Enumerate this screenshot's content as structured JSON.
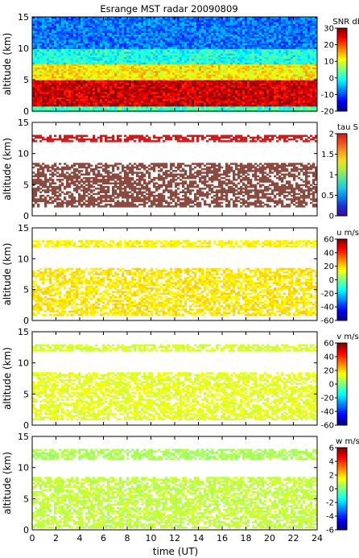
{
  "title": "Esrange MST radar 20090809",
  "xlabel": "time (UT)",
  "x_ticks": [
    "0",
    "2",
    "4",
    "6",
    "8",
    "10",
    "12",
    "14",
    "16",
    "18",
    "20",
    "22",
    "24"
  ],
  "y_ticks": [
    "0",
    "5",
    "10",
    "15"
  ],
  "colors": {
    "jet": [
      "#00007f",
      "#0000ff",
      "#007fff",
      "#00ffff",
      "#7fff7f",
      "#ffff00",
      "#ff7f00",
      "#ff0000",
      "#7f0000"
    ],
    "tau": [
      "#3b0aa0",
      "#1a2fd6",
      "#0f7ee8",
      "#19c8e6",
      "#55e0a0",
      "#a8ec4a",
      "#f0e020",
      "#f7a020",
      "#f05020",
      "#c81e1e"
    ],
    "brown": "#8b4a40"
  },
  "chart_data": [
    {
      "type": "heatmap",
      "id": "snr",
      "ylabel": "altitude (km)",
      "xlim": [
        0,
        24
      ],
      "ylim": [
        0,
        15
      ],
      "colorbar": {
        "label": "SNR dB",
        "range": [
          -20,
          30
        ],
        "ticks": [
          "30",
          "20",
          "10",
          "0",
          "-10",
          "-20"
        ]
      },
      "layers": [
        {
          "alt": [
            0,
            1.0
          ],
          "value": 2
        },
        {
          "alt": [
            1.0,
            5.0
          ],
          "value": 26
        },
        {
          "alt": [
            5.0,
            7.5
          ],
          "value": 12
        },
        {
          "alt": [
            7.5,
            10
          ],
          "value": 0
        },
        {
          "alt": [
            10,
            15
          ],
          "value": -8
        }
      ]
    },
    {
      "type": "heatmap",
      "id": "tau",
      "ylabel": "altitude (km)",
      "xlim": [
        0,
        24
      ],
      "ylim": [
        0,
        15
      ],
      "colorbar": {
        "label": "tau S",
        "range": [
          0,
          2
        ],
        "ticks": [
          "2",
          "1.5",
          "1",
          "0.5",
          "0"
        ]
      },
      "layers": [
        {
          "alt": [
            1.5,
            8.5
          ],
          "value": 2
        },
        {
          "alt": [
            12.0,
            13.0
          ],
          "value": 2
        }
      ]
    },
    {
      "type": "heatmap",
      "id": "u",
      "ylabel": "altitude (km)",
      "xlim": [
        0,
        24
      ],
      "ylim": [
        0,
        15
      ],
      "colorbar": {
        "label": "u m/s",
        "range": [
          -60,
          60
        ],
        "ticks": [
          "60",
          "40",
          "20",
          "0",
          "-20",
          "-40",
          "-60"
        ]
      },
      "layers": [
        {
          "alt": [
            1.0,
            8.5
          ],
          "value": 18
        },
        {
          "alt": [
            12.0,
            13.0
          ],
          "value": 16
        }
      ]
    },
    {
      "type": "heatmap",
      "id": "v",
      "ylabel": "altitude (km)",
      "xlim": [
        0,
        24
      ],
      "ylim": [
        0,
        15
      ],
      "colorbar": {
        "label": "v m/s",
        "range": [
          -60,
          60
        ],
        "ticks": [
          "60",
          "40",
          "20",
          "0",
          "-20",
          "-40",
          "-60"
        ]
      },
      "layers": [
        {
          "alt": [
            1.0,
            8.5
          ],
          "value": 12
        },
        {
          "alt": [
            12.0,
            13.0
          ],
          "value": 10
        }
      ]
    },
    {
      "type": "heatmap",
      "id": "w",
      "ylabel": "altitude (km)",
      "xlim": [
        0,
        24
      ],
      "ylim": [
        0,
        15
      ],
      "colorbar": {
        "label": "w m/s",
        "range": [
          -6,
          6
        ],
        "ticks": [
          "6",
          "4",
          "2",
          "0",
          "-2",
          "-4",
          "-6"
        ]
      },
      "layers": [
        {
          "alt": [
            0.5,
            8.5
          ],
          "value": 0.8
        },
        {
          "alt": [
            11.5,
            13.0
          ],
          "value": 0.5
        }
      ]
    }
  ]
}
